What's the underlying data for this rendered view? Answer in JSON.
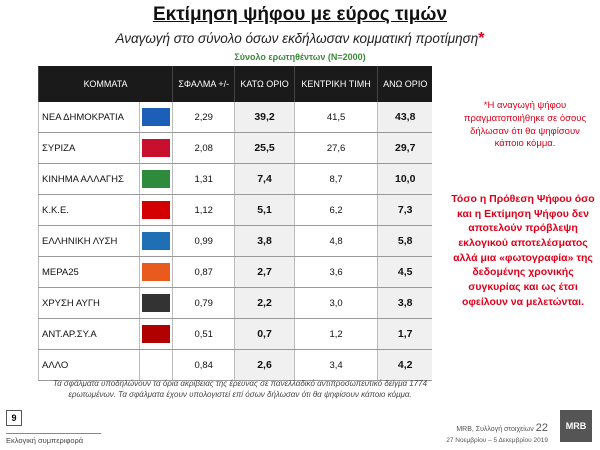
{
  "header": {
    "title": "Εκτίμηση ψήφου με εύρος τιμών",
    "subtitle": "Αναγωγή στο σύνολο όσων εκδήλωσαν κομματική προτίμηση",
    "asterisk": "*",
    "sample": "Σύνολο ερωτηθέντων (N=2000)"
  },
  "table": {
    "columns": [
      "ΚΟΜΜΑΤΑ",
      "ΣΦΑΛΜΑ +/-",
      "ΚΑΤΩ ΟΡΙΟ",
      "ΚΕΝΤΡΙΚΗ ΤΙΜΗ",
      "ΑΝΩ ΟΡΙΟ"
    ],
    "rows": [
      [
        "ΝΕΑ ΔΗΜΟΚΡΑΤΙΑ",
        "2,29",
        "39,2",
        "41,5",
        "43,8"
      ],
      [
        "ΣΥΡΙΖΑ",
        "2,08",
        "25,5",
        "27,6",
        "29,7"
      ],
      [
        "ΚΙΝΗΜΑ ΑΛΛΑΓΗΣ",
        "1,31",
        "7,4",
        "8,7",
        "10,0"
      ],
      [
        "Κ.Κ.Ε.",
        "1,12",
        "5,1",
        "6,2",
        "7,3"
      ],
      [
        "ΕΛΛΗΝΙΚΗ ΛΥΣΗ",
        "0,99",
        "3,8",
        "4,8",
        "5,8"
      ],
      [
        "ΜΕΡΑ25",
        "0,87",
        "2,7",
        "3,6",
        "4,5"
      ],
      [
        "ΧΡΥΣΗ ΑΥΓΗ",
        "0,79",
        "2,2",
        "3,0",
        "3,8"
      ],
      [
        "ΑΝΤ.ΑΡ.ΣΥ.Α",
        "0,51",
        "0,7",
        "1,2",
        "1,7"
      ],
      [
        "ΑΛΛΟ",
        "0,84",
        "2,6",
        "3,4",
        "4,2"
      ]
    ]
  },
  "notes": {
    "asterisk_note": "*Η αναγωγή ψήφου πραγματοποιήθηκε σε όσους δήλωσαν ότι θα ψηφίσουν κάποιο κόμμα.",
    "disclaimer": "Τόσο η Πρόθεση Ψήφου όσο και η Εκτίμηση Ψήφου δεν αποτελούν πρόβλεψη εκλογικού αποτελέσματος αλλά μια «φωτογραφία» της δεδομένης χρονικής συγκυρίας και ως έτσι οφείλουν να μελετώνται.",
    "error_note": "Τα σφάλματα υποδηλώνουν τα όρια ακρίβειας της έρευνας σε πανελλαδικό αντιπροσωπευτικό δείγμα 1774 ερωτωμένων. Τα σφάλματα έχουν υπολογιστεί επί όσων δήλωσαν ότι θα ψηφίσουν κάποιο κόμμα."
  },
  "footer": {
    "page": "9",
    "section": "Εκλογική συμπεριφορά",
    "source": "MRB, Συλλογή στοιχείων",
    "slide": "22",
    "dates": "27 Νοεμβρίου – 5 Δεκεμβρίου 2019",
    "logo": "MRB"
  }
}
